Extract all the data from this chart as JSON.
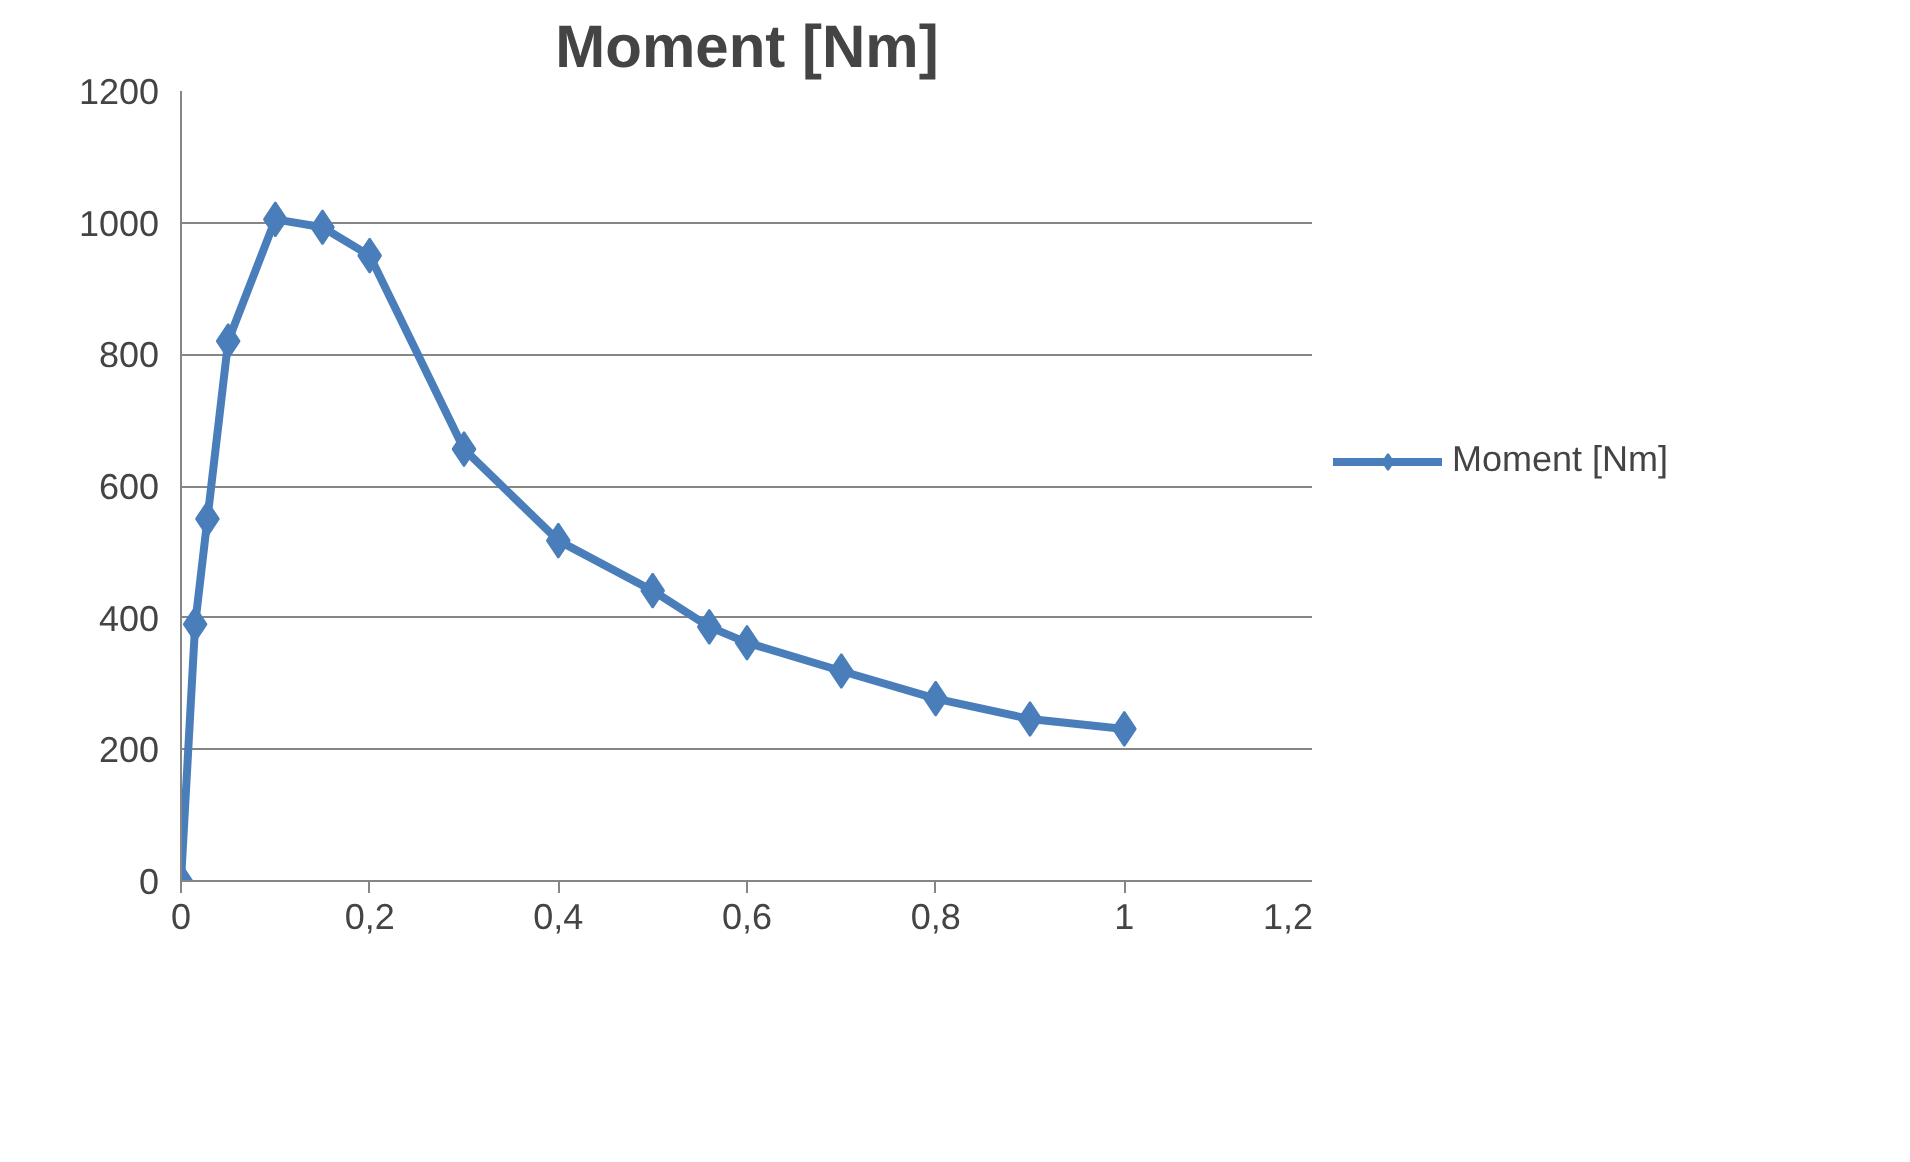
{
  "chart_data": {
    "type": "line",
    "title": "Moment [Nm]",
    "x": [
      0,
      0.015,
      0.028,
      0.05,
      0.1,
      0.15,
      0.2,
      0.3,
      0.4,
      0.5,
      0.56,
      0.6,
      0.7,
      0.8,
      0.9,
      1.0
    ],
    "series": [
      {
        "name": "Moment [Nm]",
        "color": "#4a7ebb",
        "values": [
          0,
          390,
          550,
          820,
          1005,
          993,
          950,
          656,
          517,
          441,
          386,
          362,
          319,
          277,
          246,
          231
        ]
      }
    ],
    "xlim": [
      0,
      1.2
    ],
    "xticks": [
      0,
      {
        "value": 0.2,
        "label": "0,2"
      },
      {
        "value": 0.4,
        "label": "0,4"
      },
      {
        "value": 0.6,
        "label": "0,6"
      },
      {
        "value": 0.8,
        "label": "0,8"
      },
      1,
      {
        "value": 1.2,
        "label": "1,2"
      }
    ],
    "ylim": [
      0,
      1200
    ],
    "yticks": [
      0,
      200,
      400,
      600,
      800,
      1000,
      1200
    ],
    "grid": "y",
    "legend": "right",
    "marker": "diamond",
    "line_style": "solid"
  }
}
